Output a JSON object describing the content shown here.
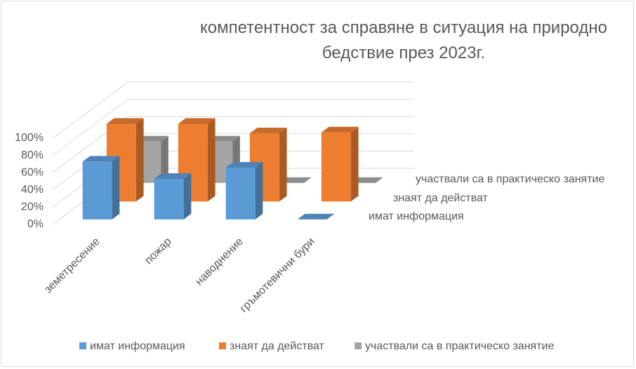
{
  "chart_data": {
    "type": "bar",
    "title": "компетентност за справяне в ситуация на природно бедствие през 2023г.",
    "categories": [
      "земетресение",
      "пожар",
      "наводнение",
      "гръмотевични бури"
    ],
    "series": [
      {
        "name": "имат информация",
        "color": "#5b9bd5",
        "values": [
          67,
          47,
          60,
          0
        ]
      },
      {
        "name": "знаят да действат",
        "color": "#ed7d31",
        "values": [
          90,
          90,
          79,
          80
        ]
      },
      {
        "name": "участвали са в практическо занятие",
        "color": "#a5a5a5",
        "values": [
          48,
          48,
          0,
          0
        ]
      }
    ],
    "ylim": [
      0,
      100
    ],
    "yticks": [
      {
        "value": 0,
        "label": "0%"
      },
      {
        "value": 20,
        "label": "20%"
      },
      {
        "value": 40,
        "label": "40%"
      },
      {
        "value": 60,
        "label": "60%"
      },
      {
        "value": 80,
        "label": "80%"
      },
      {
        "value": 100,
        "label": "100%"
      }
    ],
    "grid": true,
    "legend": "bottom"
  }
}
